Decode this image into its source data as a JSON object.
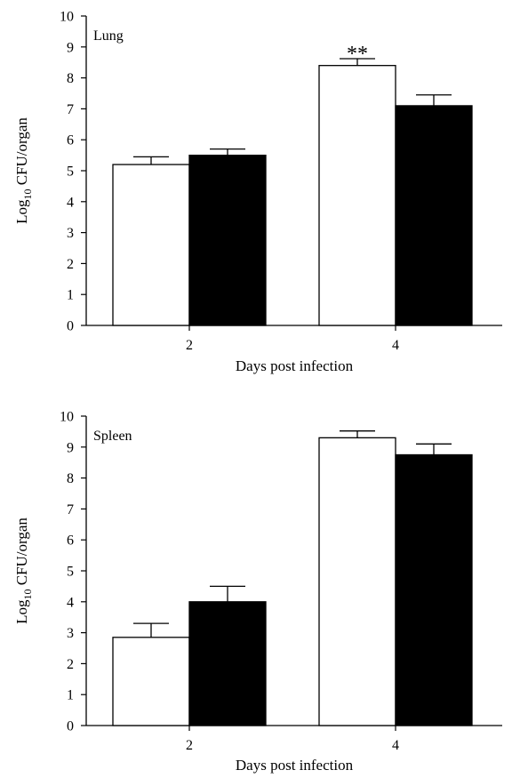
{
  "chart_data": [
    {
      "type": "bar",
      "title": "",
      "panel_label": "Lung",
      "xlabel": "Days post infection",
      "ylabel": {
        "prefix": "Log",
        "subscript": "10",
        "suffix": " CFU/organ"
      },
      "ylim": [
        0,
        10
      ],
      "yticks": [
        "0",
        "1",
        "2",
        "3",
        "4",
        "5",
        "6",
        "7",
        "8",
        "9",
        "10"
      ],
      "categories": [
        "2",
        "4"
      ],
      "series": [
        {
          "fill": "#ffffff",
          "values": [
            5.2,
            8.4
          ],
          "errors": [
            0.25,
            0.22
          ]
        },
        {
          "fill": "#000000",
          "values": [
            5.5,
            7.1
          ],
          "errors": [
            0.2,
            0.35
          ]
        }
      ],
      "annotations": [
        {
          "text": "**",
          "category_index": 1,
          "series_index": 0
        }
      ]
    },
    {
      "type": "bar",
      "title": "",
      "panel_label": "Spleen",
      "xlabel": "Days post infection",
      "ylabel": {
        "prefix": "Log",
        "subscript": "10",
        "suffix": " CFU/organ"
      },
      "ylim": [
        0,
        10
      ],
      "yticks": [
        "0",
        "1",
        "2",
        "3",
        "4",
        "5",
        "6",
        "7",
        "8",
        "9",
        "10"
      ],
      "categories": [
        "2",
        "4"
      ],
      "series": [
        {
          "fill": "#ffffff",
          "values": [
            2.85,
            9.3
          ],
          "errors": [
            0.45,
            0.22
          ]
        },
        {
          "fill": "#000000",
          "values": [
            4.0,
            8.75
          ],
          "errors": [
            0.5,
            0.35
          ]
        }
      ],
      "annotations": []
    }
  ]
}
